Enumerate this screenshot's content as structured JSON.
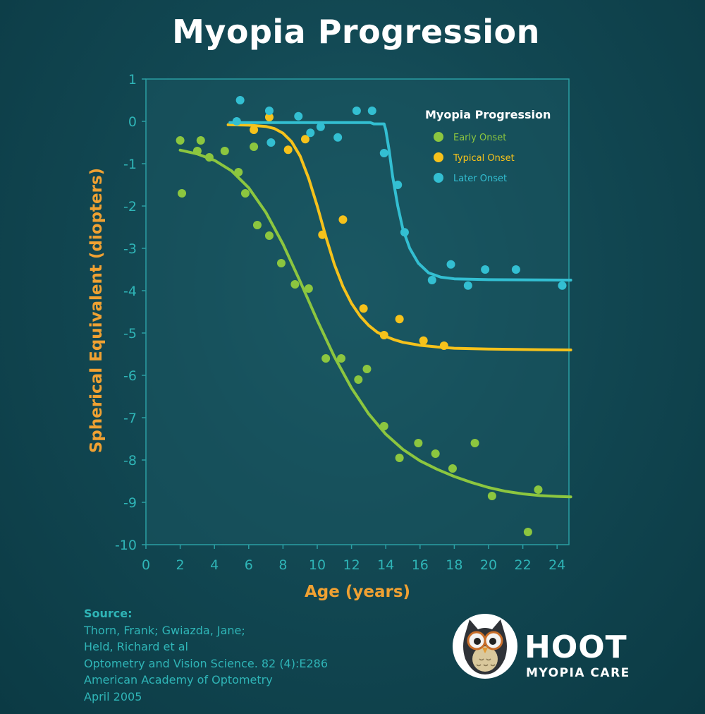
{
  "title": "Myopia Progression",
  "source": {
    "heading": "Source:",
    "lines": [
      "Thorn, Frank; Gwiazda, Jane;",
      "Held, Richard et al",
      "Optometry and Vision Science. 82 (4):E286",
      "American Academy of Optometry",
      "April 2005"
    ]
  },
  "logo": {
    "brand": "HOOT",
    "subtitle": "MYOPIA CARE"
  },
  "chart_data": {
    "type": "scatter",
    "title": "Myopia Progression",
    "xlabel": "Age (years)",
    "ylabel": "Spherical Equivalent (diopters)",
    "xlim": [
      0,
      25
    ],
    "ylim": [
      -10,
      1
    ],
    "xticks": [
      0,
      2,
      4,
      6,
      8,
      10,
      12,
      14,
      16,
      18,
      20,
      22,
      24
    ],
    "yticks": [
      1,
      0,
      -1,
      -2,
      -3,
      -4,
      -5,
      -6,
      -7,
      -8,
      -9,
      -10
    ],
    "legend": {
      "title": "Myopia Progression",
      "placement": "top-right"
    },
    "grid": false,
    "series": [
      {
        "name": "Early Onset",
        "color": "#8cc63f",
        "points": [
          [
            2.0,
            -0.45
          ],
          [
            2.1,
            -1.7
          ],
          [
            3.0,
            -0.7
          ],
          [
            3.2,
            -0.45
          ],
          [
            3.7,
            -0.85
          ],
          [
            4.6,
            -0.7
          ],
          [
            5.4,
            -1.2
          ],
          [
            5.8,
            -1.7
          ],
          [
            6.3,
            -0.6
          ],
          [
            6.5,
            -2.45
          ],
          [
            7.2,
            -2.7
          ],
          [
            7.9,
            -3.35
          ],
          [
            8.7,
            -3.85
          ],
          [
            9.5,
            -3.95
          ],
          [
            10.5,
            -5.6
          ],
          [
            11.4,
            -5.6
          ],
          [
            12.4,
            -6.1
          ],
          [
            12.9,
            -5.85
          ],
          [
            13.9,
            -7.2
          ],
          [
            14.8,
            -7.95
          ],
          [
            15.9,
            -7.6
          ],
          [
            16.9,
            -7.85
          ],
          [
            17.9,
            -8.2
          ],
          [
            19.2,
            -7.6
          ],
          [
            20.2,
            -8.85
          ],
          [
            22.3,
            -9.7
          ],
          [
            22.9,
            -8.7
          ]
        ],
        "curve": [
          [
            2,
            -0.68
          ],
          [
            3,
            -0.77
          ],
          [
            4,
            -0.92
          ],
          [
            5,
            -1.17
          ],
          [
            6,
            -1.57
          ],
          [
            7,
            -2.15
          ],
          [
            8,
            -2.9
          ],
          [
            9,
            -3.78
          ],
          [
            10,
            -4.7
          ],
          [
            11,
            -5.56
          ],
          [
            12,
            -6.3
          ],
          [
            13,
            -6.91
          ],
          [
            14,
            -7.39
          ],
          [
            15,
            -7.75
          ],
          [
            16,
            -8.02
          ],
          [
            17,
            -8.22
          ],
          [
            18,
            -8.39
          ],
          [
            19,
            -8.53
          ],
          [
            20,
            -8.65
          ],
          [
            21,
            -8.74
          ],
          [
            22,
            -8.8
          ],
          [
            23,
            -8.84
          ],
          [
            24,
            -8.86
          ],
          [
            24.8,
            -8.87
          ]
        ]
      },
      {
        "name": "Typical Onset",
        "color": "#f6c21b",
        "points": [
          [
            6.3,
            -0.2
          ],
          [
            7.2,
            0.1
          ],
          [
            8.3,
            -0.67
          ],
          [
            9.3,
            -0.42
          ],
          [
            10.3,
            -2.68
          ],
          [
            11.5,
            -2.32
          ],
          [
            12.7,
            -4.42
          ],
          [
            13.9,
            -5.05
          ],
          [
            14.8,
            -4.67
          ],
          [
            16.2,
            -5.18
          ],
          [
            17.4,
            -5.3
          ]
        ],
        "curve": [
          [
            4.8,
            -0.08
          ],
          [
            6,
            -0.09
          ],
          [
            7,
            -0.12
          ],
          [
            7.5,
            -0.17
          ],
          [
            8,
            -0.28
          ],
          [
            8.5,
            -0.48
          ],
          [
            9,
            -0.82
          ],
          [
            9.5,
            -1.35
          ],
          [
            10,
            -2.0
          ],
          [
            10.5,
            -2.72
          ],
          [
            11,
            -3.38
          ],
          [
            11.5,
            -3.9
          ],
          [
            12,
            -4.3
          ],
          [
            12.5,
            -4.6
          ],
          [
            13,
            -4.82
          ],
          [
            13.5,
            -4.98
          ],
          [
            14,
            -5.08
          ],
          [
            14.5,
            -5.16
          ],
          [
            15,
            -5.22
          ],
          [
            16,
            -5.29
          ],
          [
            17,
            -5.33
          ],
          [
            18,
            -5.36
          ],
          [
            20,
            -5.38
          ],
          [
            22,
            -5.39
          ],
          [
            24.8,
            -5.4
          ]
        ]
      },
      {
        "name": "Later Onset",
        "color": "#33bfd2",
        "points": [
          [
            5.3,
            0.0
          ],
          [
            5.5,
            0.5
          ],
          [
            7.2,
            0.25
          ],
          [
            7.3,
            -0.5
          ],
          [
            8.9,
            0.12
          ],
          [
            9.6,
            -0.27
          ],
          [
            10.2,
            -0.13
          ],
          [
            11.2,
            -0.38
          ],
          [
            12.3,
            0.25
          ],
          [
            13.2,
            0.25
          ],
          [
            13.9,
            -0.75
          ],
          [
            14.7,
            -1.5
          ],
          [
            15.1,
            -2.62
          ],
          [
            16.7,
            -3.75
          ],
          [
            17.8,
            -3.38
          ],
          [
            18.8,
            -3.88
          ],
          [
            19.8,
            -3.5
          ],
          [
            21.6,
            -3.5
          ],
          [
            24.3,
            -3.88
          ]
        ],
        "curve": [
          [
            4.9,
            -0.03
          ],
          [
            13.1,
            -0.03
          ],
          [
            13.3,
            -0.06
          ],
          [
            13.9,
            -0.06
          ],
          [
            14.0,
            -0.2
          ],
          [
            14.2,
            -0.7
          ],
          [
            14.4,
            -1.3
          ],
          [
            14.7,
            -2.0
          ],
          [
            15.0,
            -2.55
          ],
          [
            15.4,
            -3.0
          ],
          [
            15.9,
            -3.35
          ],
          [
            16.5,
            -3.58
          ],
          [
            17.2,
            -3.68
          ],
          [
            18,
            -3.72
          ],
          [
            20,
            -3.74
          ],
          [
            24.8,
            -3.75
          ]
        ]
      }
    ]
  }
}
